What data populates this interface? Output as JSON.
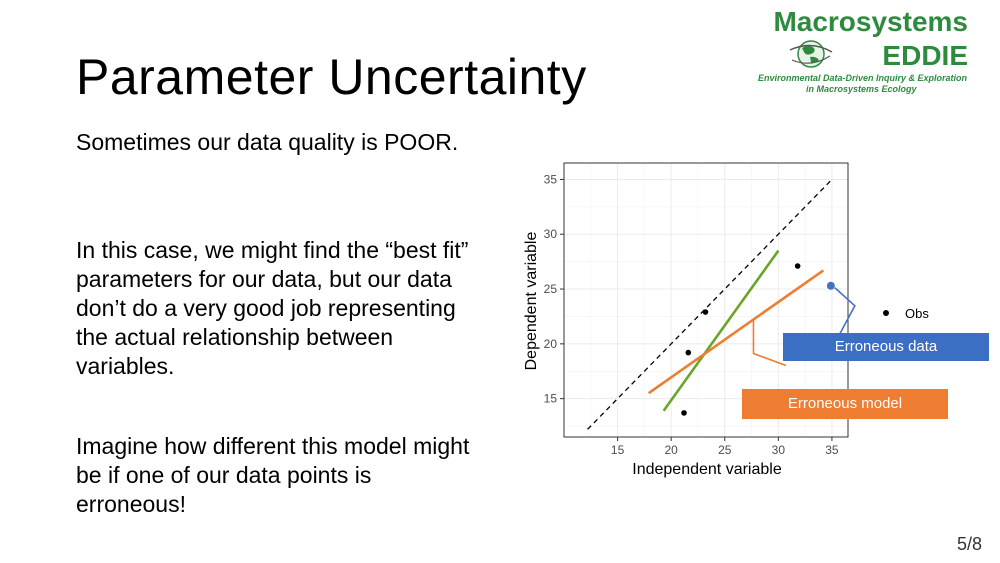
{
  "slide": {
    "title": "Parameter Uncertainty",
    "paragraphs": [
      "Sometimes our data quality is POOR.",
      "In this case, we might find the “best fit” parameters for our data, but our data don’t do a very good job representing the actual relationship between variables.",
      "Imagine how different this model might be if one of our data points is erroneous!"
    ],
    "page_number": "5/8"
  },
  "logo": {
    "line1": "Macrosystems",
    "line2": "EDDIE",
    "sub1": "Environmental Data-Driven Inquiry & Exploration",
    "sub2": "in Macrosystems Ecology",
    "color": "#2e8b3e"
  },
  "callouts": {
    "data_label": "Erroneous data",
    "data_color": "#3a6fc4",
    "model_label": "Erroneous model",
    "model_color": "#ee7d31"
  },
  "chart_data": {
    "type": "scatter",
    "xlabel": "Independent variable",
    "ylabel": "Dependent variable",
    "xlim": [
      10,
      36.5
    ],
    "ylim": [
      11.5,
      36.5
    ],
    "xticks": [
      15,
      20,
      25,
      30,
      35
    ],
    "yticks": [
      15,
      20,
      25,
      30,
      35
    ],
    "grid": true,
    "legend": {
      "position": "right",
      "entries": [
        "Obs"
      ]
    },
    "points": [
      {
        "x": 21.2,
        "y": 13.7
      },
      {
        "x": 21.6,
        "y": 19.2
      },
      {
        "x": 23.2,
        "y": 22.9
      },
      {
        "x": 31.8,
        "y": 27.1
      }
    ],
    "erroneous_point": {
      "x": 34.9,
      "y": 25.3,
      "color": "#4472c4"
    },
    "series": [
      {
        "style": "dashed",
        "color": "#000000",
        "x": [
          12.2,
          35.0
        ],
        "y": [
          12.2,
          35.0
        ]
      },
      {
        "color": "#6aa52a",
        "x": [
          19.3,
          30.0
        ],
        "y": [
          13.9,
          28.5
        ]
      },
      {
        "color": "#ee7d31",
        "x": [
          17.9,
          34.2
        ],
        "y": [
          15.5,
          26.7
        ]
      }
    ]
  }
}
